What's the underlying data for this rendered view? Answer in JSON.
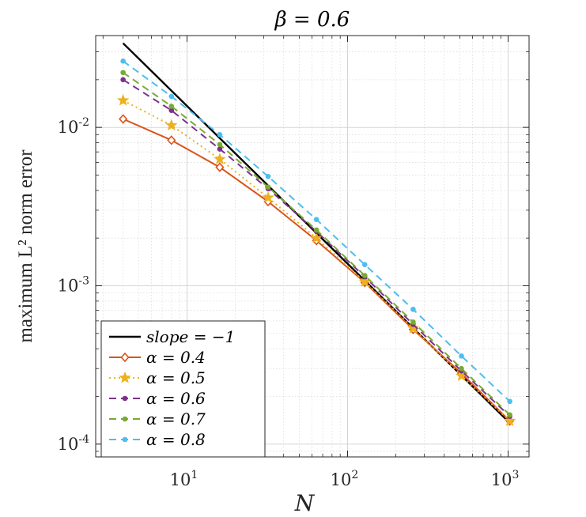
{
  "chart_data": {
    "type": "line",
    "title": "β = 0.6",
    "xlabel": "N",
    "ylabel": "maximum L² norm error",
    "x_scale": "log",
    "y_scale": "log",
    "xlim": [
      2.7,
      1350
    ],
    "ylim": [
      8.3e-05,
      0.038
    ],
    "x_ticks": [
      {
        "value": 10,
        "base": "10",
        "exp": "1"
      },
      {
        "value": 100,
        "base": "10",
        "exp": "2"
      },
      {
        "value": 1000,
        "base": "10",
        "exp": "3"
      }
    ],
    "y_ticks": [
      {
        "value": 0.0001,
        "base": "10",
        "exp": "-4"
      },
      {
        "value": 0.001,
        "base": "10",
        "exp": "-3"
      },
      {
        "value": 0.01,
        "base": "10",
        "exp": "-2"
      }
    ],
    "grid": true,
    "minor_grid": true,
    "legend_position": "bottom-left",
    "x": [
      4,
      8,
      16,
      32,
      64,
      128,
      256,
      512,
      1024
    ],
    "series": [
      {
        "name": "slope = −1",
        "color": "#000000",
        "style": "solid",
        "marker": "none",
        "x": [
          4,
          1024
        ],
        "values": [
          0.034,
          0.000136
        ]
      },
      {
        "name": "α = 0.4",
        "color": "#d95319",
        "style": "solid",
        "marker": "diamond",
        "values": [
          0.0113,
          0.0083,
          0.0056,
          0.0034,
          0.00193,
          0.00105,
          0.00053,
          0.00028,
          0.00014
        ]
      },
      {
        "name": "α = 0.5",
        "color": "#edb120",
        "style": "dotted",
        "marker": "star",
        "values": [
          0.0148,
          0.0103,
          0.0063,
          0.0036,
          0.002,
          0.00106,
          0.00054,
          0.00027,
          0.00014
        ]
      },
      {
        "name": "α = 0.6",
        "color": "#7e2f8e",
        "style": "dashed",
        "marker": "dot",
        "values": [
          0.02,
          0.0128,
          0.0073,
          0.0041,
          0.0022,
          0.00114,
          0.00057,
          0.00029,
          0.00015
        ]
      },
      {
        "name": "α = 0.7",
        "color": "#77ac30",
        "style": "dashed",
        "marker": "dot",
        "values": [
          0.0222,
          0.0136,
          0.0078,
          0.0042,
          0.00225,
          0.00116,
          0.00059,
          0.0003,
          0.000153
        ]
      },
      {
        "name": "α = 0.8",
        "color": "#4dbeee",
        "style": "dashed",
        "marker": "dot",
        "values": [
          0.0262,
          0.0157,
          0.009,
          0.0049,
          0.00262,
          0.00136,
          0.00071,
          0.00036,
          0.000186
        ]
      }
    ]
  }
}
